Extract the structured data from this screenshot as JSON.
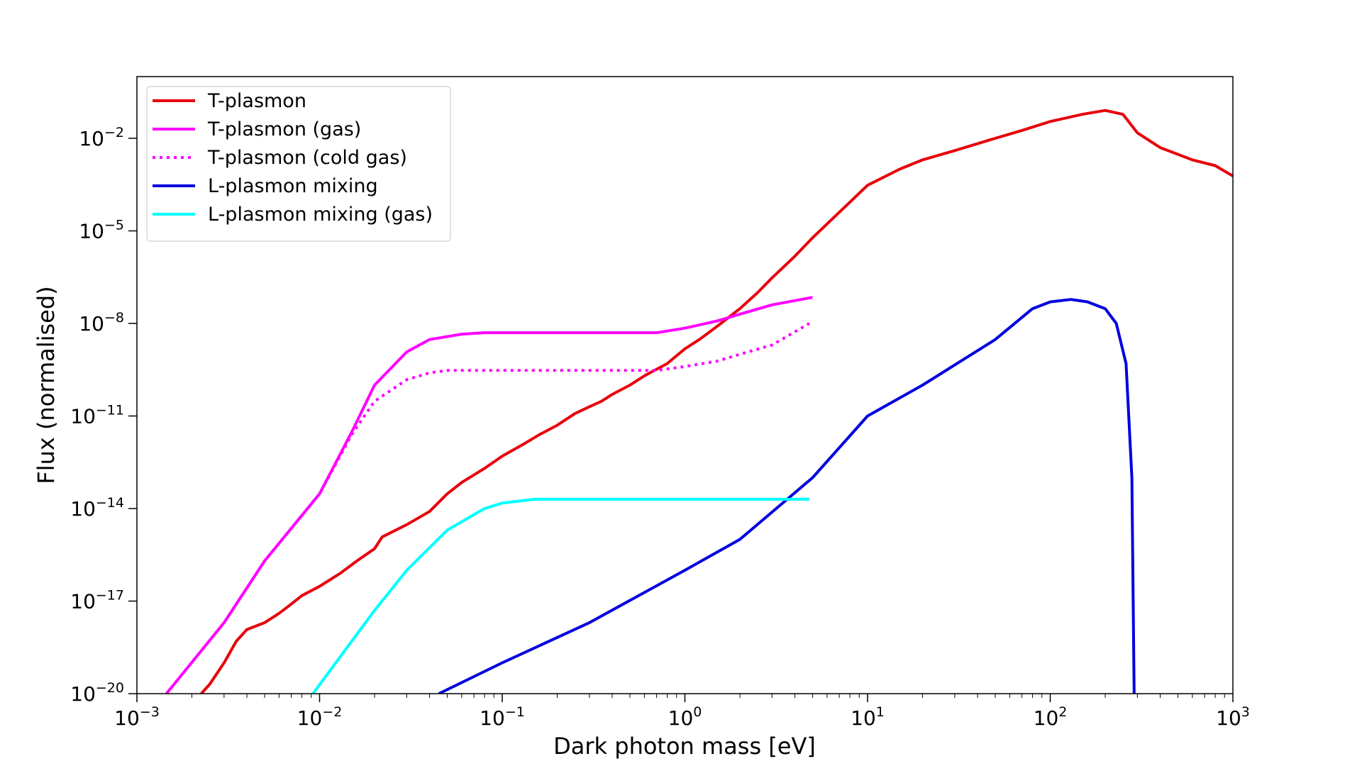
{
  "chart_data": {
    "type": "line",
    "title": "",
    "xlabel": "Dark photon mass [eV]",
    "ylabel": "Flux (normalised)",
    "xscale": "log",
    "yscale": "log",
    "xlim": [
      0.001,
      1000
    ],
    "ylim": [
      1e-20,
      1
    ],
    "grid": false,
    "legend_position": "top-left",
    "x_ticks": [
      {
        "base": "10",
        "exp": "−3"
      },
      {
        "base": "10",
        "exp": "−2"
      },
      {
        "base": "10",
        "exp": "−1"
      },
      {
        "base": "10",
        "exp": "0"
      },
      {
        "base": "10",
        "exp": "1"
      },
      {
        "base": "10",
        "exp": "2"
      },
      {
        "base": "10",
        "exp": "3"
      }
    ],
    "y_ticks": [
      {
        "base": "10",
        "exp": "−20"
      },
      {
        "base": "10",
        "exp": "−17"
      },
      {
        "base": "10",
        "exp": "−14"
      },
      {
        "base": "10",
        "exp": "−11"
      },
      {
        "base": "10",
        "exp": "−8"
      },
      {
        "base": "10",
        "exp": "−5"
      },
      {
        "base": "10",
        "exp": "−2"
      }
    ],
    "series": [
      {
        "name": "T-plasmon",
        "color": "#e8000b",
        "dash": "solid",
        "points": [
          [
            0.00225,
            1e-20
          ],
          [
            0.0025,
            2e-20
          ],
          [
            0.003,
            1e-19
          ],
          [
            0.0035,
            5e-19
          ],
          [
            0.004,
            1.2e-18
          ],
          [
            0.005,
            2e-18
          ],
          [
            0.006,
            4e-18
          ],
          [
            0.007,
            8e-18
          ],
          [
            0.008,
            1.5e-17
          ],
          [
            0.01,
            3e-17
          ],
          [
            0.013,
            8e-17
          ],
          [
            0.016,
            2e-16
          ],
          [
            0.02,
            5e-16
          ],
          [
            0.022,
            1.2e-15
          ],
          [
            0.03,
            3e-15
          ],
          [
            0.04,
            8e-15
          ],
          [
            0.05,
            3e-14
          ],
          [
            0.06,
            7e-14
          ],
          [
            0.08,
            2e-13
          ],
          [
            0.1,
            5e-13
          ],
          [
            0.13,
            1.2e-12
          ],
          [
            0.16,
            2.5e-12
          ],
          [
            0.2,
            5e-12
          ],
          [
            0.25,
            1.2e-11
          ],
          [
            0.3,
            2e-11
          ],
          [
            0.35,
            3e-11
          ],
          [
            0.4,
            5e-11
          ],
          [
            0.5,
            1e-10
          ],
          [
            0.6,
            2e-10
          ],
          [
            0.8,
            5e-10
          ],
          [
            1.0,
            1.5e-09
          ],
          [
            1.2,
            3e-09
          ],
          [
            1.5,
            8e-09
          ],
          [
            2.0,
            3e-08
          ],
          [
            2.5,
            1e-07
          ],
          [
            3.0,
            3e-07
          ],
          [
            4.0,
            1.5e-06
          ],
          [
            5.0,
            6e-06
          ],
          [
            7.0,
            4e-05
          ],
          [
            10.0,
            0.0003
          ],
          [
            15.0,
            0.001
          ],
          [
            20.0,
            0.002
          ],
          [
            30.0,
            0.004
          ],
          [
            50.0,
            0.01
          ],
          [
            70.0,
            0.018
          ],
          [
            100.0,
            0.035
          ],
          [
            150.0,
            0.06
          ],
          [
            200.0,
            0.08
          ],
          [
            250.0,
            0.06
          ],
          [
            300.0,
            0.015
          ],
          [
            400.0,
            0.005
          ],
          [
            600.0,
            0.002
          ],
          [
            800.0,
            0.0013
          ],
          [
            1000.0,
            0.0006
          ]
        ]
      },
      {
        "name": "T-plasmon (gas)",
        "color": "#ff00ff",
        "dash": "solid",
        "points": [
          [
            0.00145,
            1e-20
          ],
          [
            0.003,
            2e-18
          ],
          [
            0.005,
            2e-16
          ],
          [
            0.01,
            3e-14
          ],
          [
            0.015,
            3e-12
          ],
          [
            0.02,
            1e-10
          ],
          [
            0.03,
            1.2e-09
          ],
          [
            0.04,
            3e-09
          ],
          [
            0.06,
            4.5e-09
          ],
          [
            0.08,
            5e-09
          ],
          [
            0.1,
            5e-09
          ],
          [
            0.3,
            5e-09
          ],
          [
            0.7,
            5e-09
          ],
          [
            1.0,
            7e-09
          ],
          [
            1.5,
            1.2e-08
          ],
          [
            2.0,
            2e-08
          ],
          [
            3.0,
            4e-08
          ],
          [
            5.0,
            7e-08
          ]
        ]
      },
      {
        "name": "T-plasmon (cold gas)",
        "color": "#ff00ff",
        "dash": "dotted",
        "points": [
          [
            0.00145,
            1e-20
          ],
          [
            0.003,
            2e-18
          ],
          [
            0.005,
            2e-16
          ],
          [
            0.01,
            3e-14
          ],
          [
            0.015,
            2.5e-12
          ],
          [
            0.02,
            3e-11
          ],
          [
            0.03,
            1.5e-10
          ],
          [
            0.04,
            2.5e-10
          ],
          [
            0.05,
            3e-10
          ],
          [
            0.07,
            3e-10
          ],
          [
            0.3,
            3e-10
          ],
          [
            0.7,
            3e-10
          ],
          [
            1.0,
            4e-10
          ],
          [
            1.5,
            6e-10
          ],
          [
            2.0,
            1e-09
          ],
          [
            3.0,
            2e-09
          ],
          [
            4.8,
            1e-08
          ]
        ]
      },
      {
        "name": "L-plasmon mixing",
        "color": "#0000e0",
        "dash": "solid",
        "points": [
          [
            0.045,
            1e-20
          ],
          [
            0.1,
            1e-19
          ],
          [
            0.3,
            2e-18
          ],
          [
            1.0,
            1e-16
          ],
          [
            2.0,
            1e-15
          ],
          [
            5.0,
            1e-13
          ],
          [
            10.0,
            1e-11
          ],
          [
            20.0,
            1e-10
          ],
          [
            50.0,
            3e-09
          ],
          [
            80.0,
            3e-08
          ],
          [
            100.0,
            5e-08
          ],
          [
            130.0,
            6e-08
          ],
          [
            160.0,
            5e-08
          ],
          [
            200.0,
            3e-08
          ],
          [
            230.0,
            1e-08
          ],
          [
            260.0,
            5e-10
          ],
          [
            280.0,
            1e-13
          ],
          [
            288.0,
            1e-20
          ]
        ]
      },
      {
        "name": "L-plasmon mixing (gas)",
        "color": "#00ffff",
        "dash": "solid",
        "points": [
          [
            0.0092,
            1e-20
          ],
          [
            0.015,
            5e-19
          ],
          [
            0.02,
            5e-18
          ],
          [
            0.03,
            1e-16
          ],
          [
            0.05,
            2e-15
          ],
          [
            0.08,
            1e-14
          ],
          [
            0.1,
            1.5e-14
          ],
          [
            0.15,
            2e-14
          ],
          [
            0.2,
            2e-14
          ],
          [
            1.0,
            2e-14
          ],
          [
            4.8,
            2e-14
          ]
        ]
      }
    ]
  }
}
